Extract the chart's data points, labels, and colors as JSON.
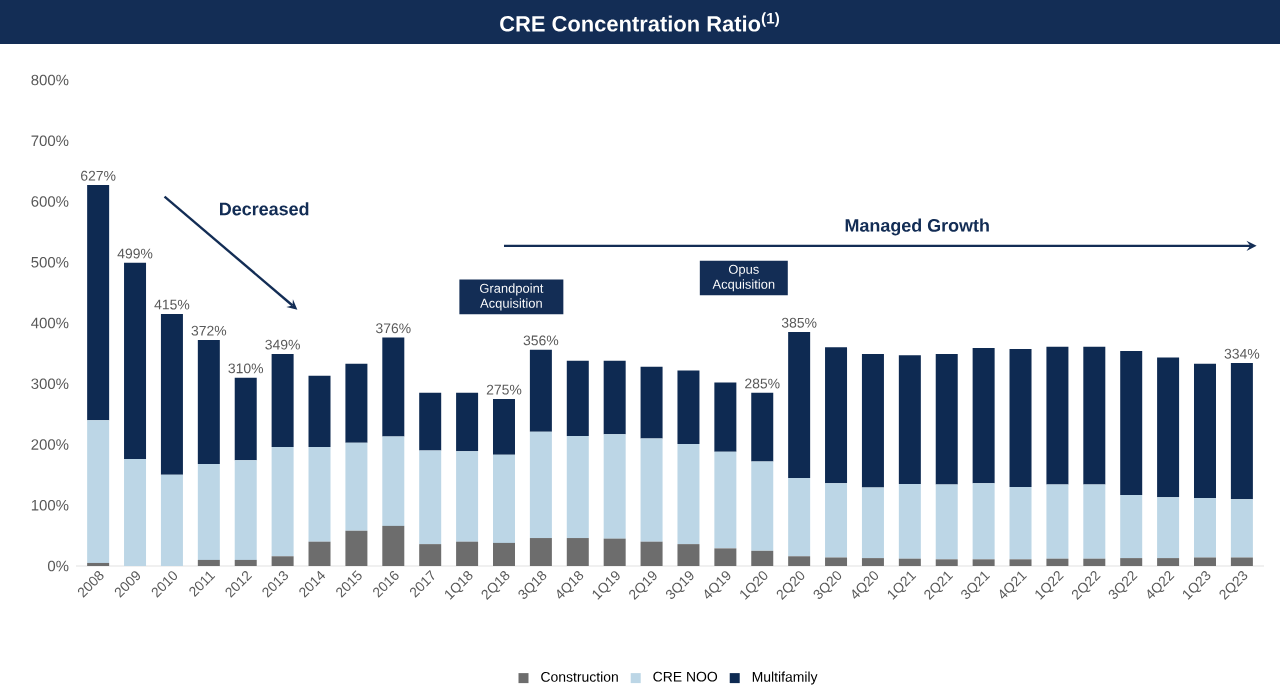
{
  "chart_data": {
    "type": "bar",
    "title": "CRE Concentration Ratio$^{(1)}$",
    "stacked": true,
    "categories": [
      "2008",
      "2009",
      "2010",
      "2011",
      "2012",
      "2013",
      "2014",
      "2015",
      "2016",
      "2017",
      "1Q18",
      "2Q18",
      "3Q18",
      "4Q18",
      "1Q19",
      "2Q19",
      "3Q19",
      "4Q19",
      "1Q20",
      "2Q20",
      "3Q20",
      "4Q20",
      "1Q21",
      "2Q21",
      "3Q21",
      "4Q21",
      "1Q22",
      "2Q22",
      "3Q22",
      "4Q22",
      "1Q23",
      "2Q23"
    ],
    "series": [
      {
        "name": "Construction",
        "color": "#6d6d6d",
        "values": [
          5,
          0,
          0,
          10,
          10,
          16,
          40,
          58,
          66,
          36,
          40,
          38,
          46,
          46,
          45,
          40,
          36,
          29,
          25,
          16,
          14,
          13,
          12,
          11,
          11,
          11,
          12,
          12,
          13,
          13,
          14,
          14
        ]
      },
      {
        "name": "CRE NOO",
        "color": "#bcd6e6",
        "values": [
          235,
          176,
          150,
          158,
          164,
          180,
          156,
          145,
          147,
          154,
          149,
          145,
          175,
          168,
          172,
          170,
          165,
          159,
          147,
          129,
          122,
          116,
          123,
          123,
          125,
          119,
          122,
          122,
          104,
          100,
          98,
          96
        ]
      },
      {
        "name": "Multifamily",
        "color": "#0e2a52",
        "values": [
          387,
          323,
          265,
          204,
          136,
          153,
          117,
          130,
          163,
          95,
          96,
          92,
          135,
          124,
          121,
          118,
          121,
          114,
          113,
          240,
          224,
          220,
          212,
          215,
          223,
          227,
          227,
          227,
          237,
          230,
          221,
          224
        ]
      }
    ],
    "totals": [
      "627%",
      "499%",
      "415%",
      "372%",
      "310%",
      "349%",
      null,
      null,
      "376%",
      null,
      null,
      "275%",
      "356%",
      null,
      null,
      null,
      null,
      null,
      "285%",
      "385%",
      null,
      null,
      null,
      null,
      null,
      null,
      null,
      null,
      null,
      null,
      null,
      "334%"
    ],
    "ylim": [
      0,
      800
    ],
    "yticks": [
      {
        "value": 0,
        "label": "0%"
      },
      {
        "value": 100,
        "label": "100%"
      },
      {
        "value": 200,
        "label": "200%"
      },
      {
        "value": 300,
        "label": "300%"
      },
      {
        "value": 400,
        "label": "400%"
      },
      {
        "value": 500,
        "label": "500%"
      },
      {
        "value": 600,
        "label": "600%"
      },
      {
        "value": 700,
        "label": "700%"
      },
      {
        "value": 800,
        "label": "800%"
      }
    ],
    "grid": false,
    "legend": "bottom",
    "annotations": [
      "Decreased",
      "Managed Growth",
      "Grandpoint Acquisition",
      "Opus Acquisition"
    ]
  }
}
